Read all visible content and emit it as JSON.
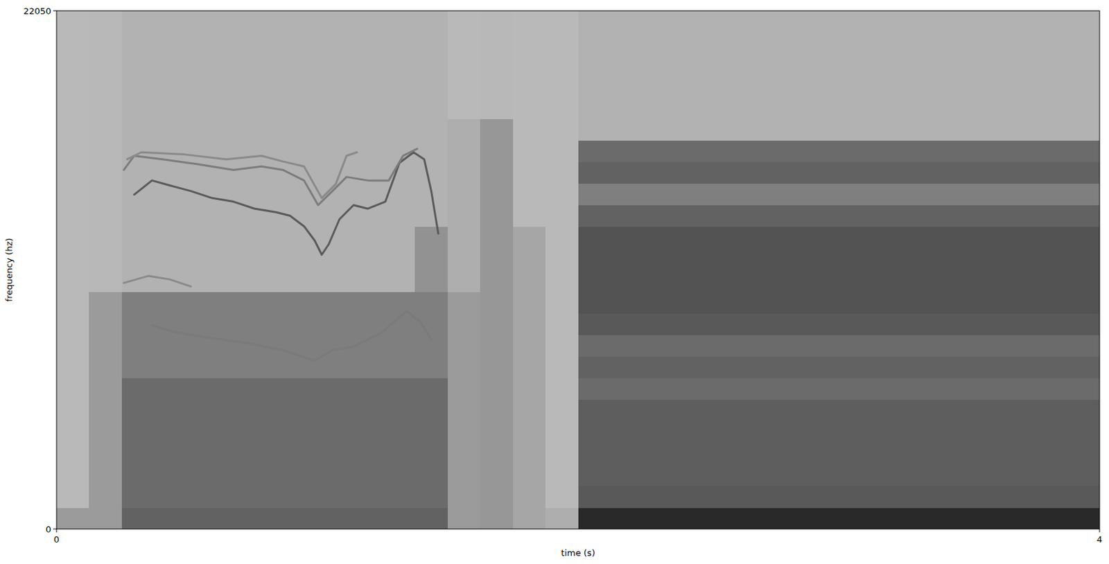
{
  "chart_data": {
    "type": "spectrogram",
    "x_label": "time (s)",
    "y_label": "frequency (hz)",
    "xlim": [
      0,
      4
    ],
    "ylim": [
      0,
      22050
    ],
    "xticks": [
      0,
      4
    ],
    "yticks": [
      0,
      22050
    ],
    "clim": [
      0,
      1
    ],
    "cells": {
      "x_edges": [
        0,
        0.125,
        0.25,
        0.375,
        0.5,
        0.625,
        0.75,
        0.875,
        1,
        1.125,
        1.25,
        1.375,
        1.5,
        1.625,
        1.75,
        1.875,
        2,
        2.125,
        2.25,
        2.375,
        2.5,
        2.625,
        2.75,
        2.875,
        3,
        3.125,
        3.25,
        3.375,
        3.5,
        3.625,
        3.75,
        3.875,
        4
      ],
      "y_edges": [
        0,
        918.75,
        1837.5,
        2756.25,
        3675,
        4593.75,
        5512.5,
        6431.25,
        7350,
        8268.75,
        9187.5,
        10106.25,
        11025,
        11943.75,
        12862.5,
        13781.25,
        14700,
        15618.75,
        16537.5,
        17456.25,
        18375,
        19293.75,
        20212.5,
        21131.25,
        22050
      ],
      "values": [
        [
          0.3,
          0.3,
          0.6,
          0.6,
          0.6,
          0.6,
          0.6,
          0.6,
          0.6,
          0.6,
          0.6,
          0.6,
          0.3,
          0.32,
          0.24,
          0.2,
          0.9,
          0.9,
          0.9,
          0.9,
          0.9,
          0.9,
          0.9,
          0.9,
          0.9,
          0.9,
          0.9,
          0.9,
          0.9,
          0.9,
          0.9,
          0.9
        ],
        [
          0.14,
          0.3,
          0.55,
          0.55,
          0.55,
          0.55,
          0.55,
          0.55,
          0.55,
          0.55,
          0.55,
          0.55,
          0.3,
          0.32,
          0.24,
          0.14,
          0.65,
          0.65,
          0.65,
          0.65,
          0.65,
          0.65,
          0.65,
          0.65,
          0.65,
          0.65,
          0.65,
          0.65,
          0.65,
          0.65,
          0.65,
          0.65
        ],
        [
          0.14,
          0.3,
          0.55,
          0.55,
          0.55,
          0.55,
          0.55,
          0.55,
          0.55,
          0.55,
          0.55,
          0.55,
          0.3,
          0.32,
          0.24,
          0.14,
          0.62,
          0.62,
          0.62,
          0.62,
          0.62,
          0.62,
          0.62,
          0.62,
          0.62,
          0.62,
          0.62,
          0.62,
          0.62,
          0.62,
          0.62,
          0.62
        ],
        [
          0.14,
          0.3,
          0.55,
          0.55,
          0.55,
          0.55,
          0.55,
          0.55,
          0.55,
          0.55,
          0.55,
          0.55,
          0.3,
          0.32,
          0.24,
          0.14,
          0.62,
          0.62,
          0.62,
          0.62,
          0.62,
          0.62,
          0.62,
          0.62,
          0.62,
          0.62,
          0.62,
          0.62,
          0.62,
          0.62,
          0.62,
          0.62
        ],
        [
          0.14,
          0.3,
          0.55,
          0.55,
          0.55,
          0.55,
          0.55,
          0.55,
          0.55,
          0.55,
          0.55,
          0.55,
          0.3,
          0.32,
          0.24,
          0.14,
          0.62,
          0.62,
          0.62,
          0.62,
          0.62,
          0.62,
          0.62,
          0.62,
          0.62,
          0.62,
          0.62,
          0.62,
          0.62,
          0.62,
          0.62,
          0.62
        ],
        [
          0.14,
          0.3,
          0.55,
          0.55,
          0.55,
          0.55,
          0.55,
          0.55,
          0.55,
          0.55,
          0.55,
          0.55,
          0.3,
          0.32,
          0.24,
          0.14,
          0.62,
          0.62,
          0.62,
          0.62,
          0.62,
          0.62,
          0.62,
          0.62,
          0.62,
          0.62,
          0.62,
          0.62,
          0.62,
          0.62,
          0.62,
          0.62
        ],
        [
          0.14,
          0.3,
          0.55,
          0.55,
          0.55,
          0.55,
          0.55,
          0.55,
          0.55,
          0.55,
          0.55,
          0.55,
          0.3,
          0.32,
          0.24,
          0.14,
          0.55,
          0.55,
          0.55,
          0.55,
          0.55,
          0.55,
          0.55,
          0.55,
          0.55,
          0.55,
          0.55,
          0.55,
          0.55,
          0.55,
          0.55,
          0.55
        ],
        [
          0.14,
          0.3,
          0.45,
          0.45,
          0.45,
          0.45,
          0.45,
          0.45,
          0.45,
          0.45,
          0.45,
          0.45,
          0.3,
          0.32,
          0.24,
          0.14,
          0.6,
          0.6,
          0.6,
          0.6,
          0.6,
          0.6,
          0.6,
          0.6,
          0.6,
          0.6,
          0.6,
          0.6,
          0.6,
          0.6,
          0.6,
          0.6
        ],
        [
          0.14,
          0.3,
          0.45,
          0.45,
          0.45,
          0.45,
          0.45,
          0.45,
          0.45,
          0.45,
          0.45,
          0.45,
          0.3,
          0.32,
          0.24,
          0.14,
          0.55,
          0.55,
          0.55,
          0.55,
          0.55,
          0.55,
          0.55,
          0.55,
          0.55,
          0.55,
          0.55,
          0.55,
          0.55,
          0.55,
          0.55,
          0.55
        ],
        [
          0.14,
          0.3,
          0.45,
          0.45,
          0.45,
          0.45,
          0.45,
          0.45,
          0.45,
          0.45,
          0.45,
          0.45,
          0.3,
          0.32,
          0.24,
          0.14,
          0.65,
          0.65,
          0.65,
          0.65,
          0.65,
          0.65,
          0.65,
          0.65,
          0.65,
          0.65,
          0.65,
          0.65,
          0.65,
          0.65,
          0.65,
          0.65
        ],
        [
          0.14,
          0.3,
          0.45,
          0.45,
          0.45,
          0.45,
          0.45,
          0.45,
          0.45,
          0.45,
          0.45,
          0.45,
          0.3,
          0.32,
          0.24,
          0.14,
          0.68,
          0.68,
          0.68,
          0.68,
          0.68,
          0.68,
          0.68,
          0.68,
          0.68,
          0.68,
          0.68,
          0.68,
          0.68,
          0.68,
          0.68,
          0.68
        ],
        [
          0.14,
          0.15,
          0.18,
          0.18,
          0.18,
          0.18,
          0.18,
          0.18,
          0.18,
          0.18,
          0.18,
          0.35,
          0.2,
          0.32,
          0.24,
          0.14,
          0.68,
          0.68,
          0.68,
          0.68,
          0.68,
          0.68,
          0.68,
          0.68,
          0.68,
          0.68,
          0.68,
          0.68,
          0.68,
          0.68,
          0.68,
          0.68
        ],
        [
          0.14,
          0.15,
          0.18,
          0.18,
          0.18,
          0.18,
          0.18,
          0.18,
          0.18,
          0.18,
          0.18,
          0.35,
          0.2,
          0.32,
          0.24,
          0.14,
          0.68,
          0.68,
          0.68,
          0.68,
          0.68,
          0.68,
          0.68,
          0.68,
          0.68,
          0.68,
          0.68,
          0.68,
          0.68,
          0.68,
          0.68,
          0.68
        ],
        [
          0.14,
          0.15,
          0.18,
          0.18,
          0.18,
          0.18,
          0.18,
          0.18,
          0.18,
          0.18,
          0.18,
          0.35,
          0.2,
          0.32,
          0.24,
          0.14,
          0.68,
          0.68,
          0.68,
          0.68,
          0.68,
          0.68,
          0.68,
          0.68,
          0.68,
          0.68,
          0.68,
          0.68,
          0.68,
          0.68,
          0.68,
          0.68
        ],
        [
          0.14,
          0.15,
          0.18,
          0.18,
          0.18,
          0.18,
          0.18,
          0.18,
          0.18,
          0.18,
          0.18,
          0.18,
          0.2,
          0.32,
          0.14,
          0.14,
          0.6,
          0.6,
          0.6,
          0.6,
          0.6,
          0.6,
          0.6,
          0.6,
          0.6,
          0.6,
          0.6,
          0.6,
          0.6,
          0.6,
          0.6,
          0.6
        ],
        [
          0.14,
          0.15,
          0.18,
          0.18,
          0.18,
          0.18,
          0.18,
          0.18,
          0.18,
          0.18,
          0.18,
          0.18,
          0.2,
          0.32,
          0.14,
          0.14,
          0.45,
          0.45,
          0.45,
          0.45,
          0.45,
          0.45,
          0.45,
          0.45,
          0.45,
          0.45,
          0.45,
          0.45,
          0.45,
          0.45,
          0.45,
          0.45
        ],
        [
          0.14,
          0.15,
          0.18,
          0.18,
          0.18,
          0.18,
          0.18,
          0.18,
          0.18,
          0.18,
          0.18,
          0.18,
          0.2,
          0.32,
          0.14,
          0.14,
          0.6,
          0.6,
          0.6,
          0.6,
          0.6,
          0.6,
          0.6,
          0.6,
          0.6,
          0.6,
          0.6,
          0.6,
          0.6,
          0.6,
          0.6,
          0.6
        ],
        [
          0.14,
          0.15,
          0.18,
          0.18,
          0.18,
          0.18,
          0.18,
          0.18,
          0.18,
          0.18,
          0.18,
          0.18,
          0.2,
          0.32,
          0.14,
          0.14,
          0.55,
          0.55,
          0.55,
          0.55,
          0.55,
          0.55,
          0.55,
          0.55,
          0.55,
          0.55,
          0.55,
          0.55,
          0.55,
          0.55,
          0.55,
          0.55
        ],
        [
          0.14,
          0.15,
          0.18,
          0.18,
          0.18,
          0.18,
          0.18,
          0.18,
          0.18,
          0.18,
          0.18,
          0.18,
          0.2,
          0.32,
          0.14,
          0.14,
          0.18,
          0.18,
          0.18,
          0.18,
          0.18,
          0.18,
          0.18,
          0.18,
          0.18,
          0.18,
          0.18,
          0.18,
          0.18,
          0.18,
          0.18,
          0.18
        ],
        [
          0.14,
          0.15,
          0.18,
          0.18,
          0.18,
          0.18,
          0.18,
          0.18,
          0.18,
          0.18,
          0.18,
          0.18,
          0.14,
          0.15,
          0.14,
          0.14,
          0.18,
          0.18,
          0.18,
          0.18,
          0.18,
          0.18,
          0.18,
          0.18,
          0.18,
          0.18,
          0.18,
          0.18,
          0.18,
          0.18,
          0.18,
          0.18
        ],
        [
          0.14,
          0.15,
          0.18,
          0.18,
          0.18,
          0.18,
          0.18,
          0.18,
          0.18,
          0.18,
          0.18,
          0.18,
          0.14,
          0.15,
          0.14,
          0.14,
          0.18,
          0.18,
          0.18,
          0.18,
          0.18,
          0.18,
          0.18,
          0.18,
          0.18,
          0.18,
          0.18,
          0.18,
          0.18,
          0.18,
          0.18,
          0.18
        ],
        [
          0.14,
          0.15,
          0.18,
          0.18,
          0.18,
          0.18,
          0.18,
          0.18,
          0.18,
          0.18,
          0.18,
          0.18,
          0.14,
          0.15,
          0.14,
          0.14,
          0.18,
          0.18,
          0.18,
          0.18,
          0.18,
          0.18,
          0.18,
          0.18,
          0.18,
          0.18,
          0.18,
          0.18,
          0.18,
          0.18,
          0.18,
          0.18
        ],
        [
          0.14,
          0.15,
          0.18,
          0.18,
          0.18,
          0.18,
          0.18,
          0.18,
          0.18,
          0.18,
          0.18,
          0.18,
          0.14,
          0.15,
          0.14,
          0.14,
          0.18,
          0.18,
          0.18,
          0.18,
          0.18,
          0.18,
          0.18,
          0.18,
          0.18,
          0.18,
          0.18,
          0.18,
          0.18,
          0.18,
          0.18,
          0.18
        ],
        [
          0.14,
          0.15,
          0.18,
          0.18,
          0.18,
          0.18,
          0.18,
          0.18,
          0.18,
          0.18,
          0.18,
          0.18,
          0.14,
          0.15,
          0.14,
          0.14,
          0.18,
          0.18,
          0.18,
          0.18,
          0.18,
          0.18,
          0.18,
          0.18,
          0.18,
          0.18,
          0.18,
          0.18,
          0.18,
          0.18,
          0.18,
          0.18
        ]
      ]
    },
    "series": [
      {
        "type": "line",
        "color": "#5a5a5a",
        "x": [
          0.298,
          0.366,
          0.434,
          0.515,
          0.597,
          0.678,
          0.759,
          0.841,
          0.895,
          0.949,
          0.99,
          1.017,
          1.044,
          1.085,
          1.139,
          1.193,
          1.261,
          1.315,
          1.369,
          1.41,
          1.437,
          1.464
        ],
        "values": [
          14230,
          14830,
          14620,
          14380,
          14080,
          13930,
          13630,
          13480,
          13330,
          12880,
          12270,
          11670,
          12120,
          13180,
          13780,
          13630,
          13930,
          15580,
          16030,
          15730,
          14380,
          12570
        ]
      },
      {
        "type": "line",
        "color": "#7c7c7c",
        "x": [
          0.258,
          0.298,
          0.407,
          0.542,
          0.678,
          0.786,
          0.868,
          0.949,
          1.003,
          1.058,
          1.112,
          1.193,
          1.274,
          1.329,
          1.383
        ],
        "values": [
          15280,
          15880,
          15730,
          15520,
          15280,
          15430,
          15280,
          14830,
          13780,
          14380,
          14980,
          14830,
          14830,
          15880,
          16180
        ]
      },
      {
        "type": "line",
        "color": "#8a8a8a",
        "x": [
          0.271,
          0.325,
          0.488,
          0.651,
          0.786,
          0.868,
          0.949,
          1.017,
          1.071,
          1.112,
          1.152
        ],
        "values": [
          15730,
          16030,
          15940,
          15730,
          15880,
          15640,
          15430,
          14080,
          14680,
          15880,
          16030
        ]
      },
      {
        "type": "line",
        "color": "#7a7a7a",
        "x": [
          0.366,
          0.461,
          0.597,
          0.732,
          0.868,
          0.99,
          1.058,
          1.139,
          1.247,
          1.342,
          1.396,
          1.437
        ],
        "values": [
          8660,
          8360,
          8120,
          7910,
          7610,
          7160,
          7610,
          7760,
          8360,
          9270,
          8810,
          8060
        ]
      },
      {
        "type": "line",
        "color": "#8a8a8a",
        "x": [
          0.258,
          0.353,
          0.434,
          0.515
        ],
        "values": [
          10470,
          10770,
          10620,
          10320
        ]
      }
    ]
  }
}
